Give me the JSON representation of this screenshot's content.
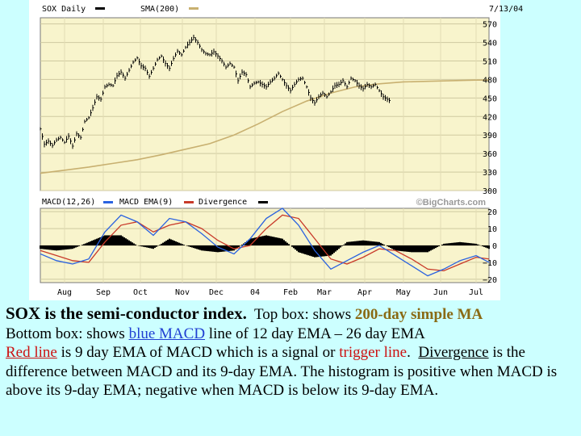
{
  "chart_data": [
    {
      "type": "line",
      "panel": "price",
      "symbol_label": "SOX Daily",
      "ma_label": "SMA(200)",
      "date": "7/13/04",
      "ylim": [
        300,
        580
      ],
      "y_ticks": [
        "570",
        "540",
        "510",
        "480",
        "450",
        "420",
        "390",
        "360",
        "330",
        "300"
      ],
      "y_tick_values": [
        570,
        540,
        510,
        480,
        450,
        420,
        390,
        360,
        330,
        300
      ],
      "x_tick_labels": [
        "Aug",
        "Sep",
        "Oct",
        "Nov",
        "Dec",
        "04",
        "Feb",
        "Mar",
        "Apr",
        "May",
        "Jun",
        "Jul"
      ],
      "price_series": {
        "name": "SOX Daily",
        "color": "#000000",
        "points": [
          [
            0,
            400
          ],
          [
            5,
            375
          ],
          [
            10,
            380
          ],
          [
            15,
            373
          ],
          [
            20,
            382
          ],
          [
            25,
            386
          ],
          [
            30,
            378
          ],
          [
            35,
            388
          ],
          [
            40,
            372
          ],
          [
            45,
            392
          ],
          [
            50,
            386
          ],
          [
            55,
            412
          ],
          [
            60,
            418
          ],
          [
            65,
            434
          ],
          [
            70,
            452
          ],
          [
            75,
            448
          ],
          [
            80,
            468
          ],
          [
            85,
            472
          ],
          [
            90,
            470
          ],
          [
            95,
            486
          ],
          [
            100,
            492
          ],
          [
            105,
            482
          ],
          [
            110,
            495
          ],
          [
            115,
            508
          ],
          [
            120,
            515
          ],
          [
            125,
            502
          ],
          [
            130,
            498
          ],
          [
            135,
            485
          ],
          [
            140,
            498
          ],
          [
            145,
            512
          ],
          [
            150,
            518
          ],
          [
            155,
            506
          ],
          [
            160,
            498
          ],
          [
            165,
            514
          ],
          [
            170,
            526
          ],
          [
            175,
            520
          ],
          [
            180,
            532
          ],
          [
            185,
            540
          ],
          [
            190,
            548
          ],
          [
            195,
            540
          ],
          [
            200,
            528
          ],
          [
            205,
            522
          ],
          [
            210,
            520
          ],
          [
            215,
            525
          ],
          [
            220,
            518
          ],
          [
            225,
            510
          ],
          [
            230,
            500
          ],
          [
            235,
            506
          ],
          [
            240,
            500
          ],
          [
            245,
            478
          ],
          [
            250,
            492
          ],
          [
            255,
            488
          ],
          [
            260,
            468
          ],
          [
            265,
            474
          ],
          [
            270,
            476
          ],
          [
            275,
            472
          ],
          [
            280,
            468
          ],
          [
            285,
            476
          ],
          [
            290,
            482
          ],
          [
            295,
            490
          ],
          [
            300,
            480
          ],
          [
            305,
            470
          ],
          [
            310,
            462
          ],
          [
            315,
            472
          ],
          [
            320,
            480
          ],
          [
            325,
            482
          ],
          [
            330,
            468
          ],
          [
            335,
            450
          ],
          [
            340,
            442
          ],
          [
            345,
            452
          ],
          [
            350,
            458
          ],
          [
            355,
            452
          ],
          [
            360,
            460
          ],
          [
            365,
            470
          ],
          [
            370,
            472
          ],
          [
            375,
            478
          ],
          [
            380,
            468
          ],
          [
            385,
            482
          ],
          [
            390,
            478
          ],
          [
            395,
            470
          ],
          [
            400,
            465
          ],
          [
            405,
            472
          ],
          [
            410,
            468
          ],
          [
            415,
            472
          ],
          [
            420,
            462
          ],
          [
            425,
            452
          ],
          [
            430,
            448
          ],
          [
            435,
            444
          ]
        ]
      },
      "ma_series": {
        "name": "SMA(200)",
        "color": "#c8b070",
        "points": [
          [
            0,
            328
          ],
          [
            30,
            333
          ],
          [
            60,
            338
          ],
          [
            90,
            344
          ],
          [
            120,
            350
          ],
          [
            150,
            358
          ],
          [
            180,
            367
          ],
          [
            210,
            376
          ],
          [
            240,
            390
          ],
          [
            270,
            408
          ],
          [
            300,
            428
          ],
          [
            330,
            445
          ],
          [
            360,
            458
          ],
          [
            390,
            468
          ],
          [
            420,
            473
          ],
          [
            450,
            476
          ],
          [
            480,
            477
          ],
          [
            510,
            478
          ],
          [
            540,
            479
          ],
          [
            556,
            479
          ]
        ]
      },
      "color": "#f8f4cc"
    },
    {
      "type": "line",
      "panel": "macd",
      "macd_label": "MACD(12,26)",
      "ema_label": "MACD EMA(9)",
      "divergence_label": "Divergence",
      "watermark": "©BigCharts.com",
      "ylim": [
        -22,
        22
      ],
      "y_ticks": [
        "20",
        "10",
        "0",
        "−10",
        "−20"
      ],
      "y_tick_values": [
        20,
        10,
        0,
        -10,
        -20
      ],
      "macd_series": {
        "name": "MACD(12,26)",
        "color": "#2a62e0",
        "points": [
          [
            0,
            -5
          ],
          [
            20,
            -9
          ],
          [
            40,
            -11
          ],
          [
            60,
            -8
          ],
          [
            80,
            8
          ],
          [
            100,
            18
          ],
          [
            120,
            14
          ],
          [
            140,
            6
          ],
          [
            160,
            16
          ],
          [
            180,
            14
          ],
          [
            200,
            7
          ],
          [
            220,
            -1
          ],
          [
            240,
            -5
          ],
          [
            260,
            4
          ],
          [
            280,
            16
          ],
          [
            300,
            22
          ],
          [
            320,
            12
          ],
          [
            340,
            -3
          ],
          [
            360,
            -14
          ],
          [
            380,
            -9
          ],
          [
            400,
            -4
          ],
          [
            420,
            0
          ],
          [
            440,
            -6
          ],
          [
            460,
            -12
          ],
          [
            480,
            -18
          ],
          [
            500,
            -14
          ],
          [
            520,
            -9
          ],
          [
            540,
            -6
          ],
          [
            556,
            -10
          ]
        ]
      },
      "signal_series": {
        "name": "MACD EMA(9)",
        "color": "#c83a2a",
        "points": [
          [
            0,
            -3
          ],
          [
            20,
            -6
          ],
          [
            40,
            -9
          ],
          [
            60,
            -10
          ],
          [
            80,
            2
          ],
          [
            100,
            12
          ],
          [
            120,
            14
          ],
          [
            140,
            8
          ],
          [
            160,
            12
          ],
          [
            180,
            14
          ],
          [
            200,
            10
          ],
          [
            220,
            3
          ],
          [
            240,
            -2
          ],
          [
            260,
            0
          ],
          [
            280,
            10
          ],
          [
            300,
            18
          ],
          [
            320,
            16
          ],
          [
            340,
            4
          ],
          [
            360,
            -8
          ],
          [
            380,
            -11
          ],
          [
            400,
            -7
          ],
          [
            420,
            -2
          ],
          [
            440,
            -3
          ],
          [
            460,
            -8
          ],
          [
            480,
            -14
          ],
          [
            500,
            -15
          ],
          [
            520,
            -11
          ],
          [
            540,
            -7
          ],
          [
            556,
            -8
          ]
        ]
      }
    }
  ],
  "caption": {
    "lead": "SOX is the semi-conductor index.",
    "top_box_prefix": "  Top box: shows ",
    "top_box_highlight": "200-day simple MA",
    "line2_prefix": "Bottom box:  shows ",
    "line2_highlight": "blue MACD",
    "line2_suffix": " line of 12 day EMA – 26 day EMA",
    "line3_highlight": "Red line",
    "line3_mid": " is 9 day EMA of MACD which is a signal or ",
    "line3_trigger": "trigger line",
    "line3_mid2": ".  ",
    "line3_divergence": "Divergence",
    "line3_suffix": " is the difference between MACD and its 9-day EMA. The histogram is positive when MACD is above its 9-day EMA; negative when MACD is below its 9-day EMA."
  }
}
